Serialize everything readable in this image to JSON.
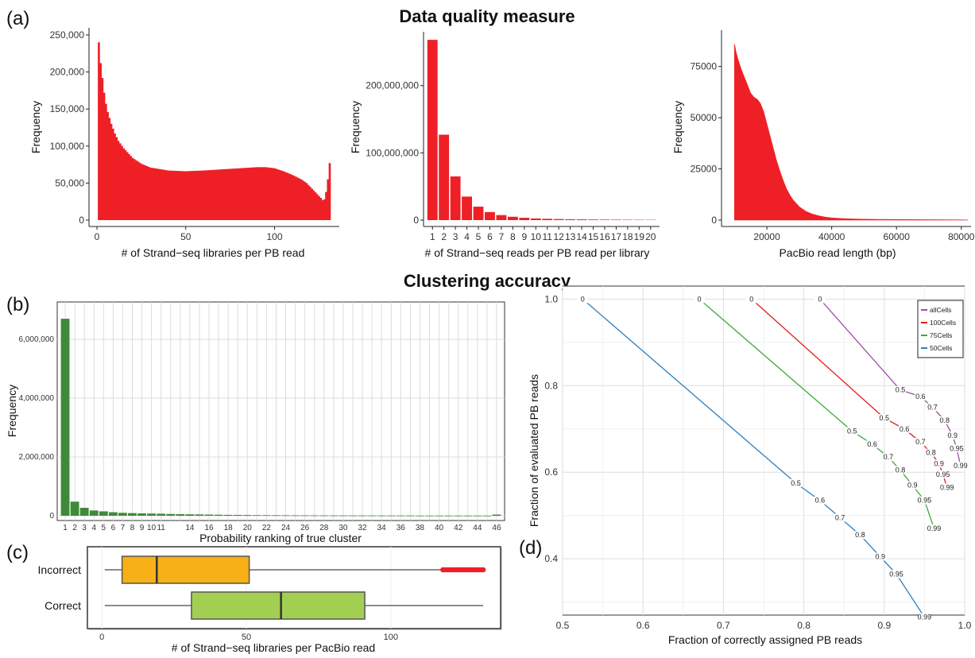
{
  "section_titles": {
    "top": "Data quality measure",
    "middle": "Clustering accuracy"
  },
  "panel_labels": {
    "a": "(a)",
    "b": "(b)",
    "c": "(c)",
    "d": "(d)"
  },
  "colors": {
    "hist_red": "#ee2026",
    "bar_green": "#3f8a3a",
    "box_orange": "#f7b015",
    "box_green": "#a2cf52",
    "outlier": "#ee2026",
    "allCells": "#9b4fa5",
    "100Cells": "#e31a1c",
    "75Cells": "#3caa3a",
    "50Cells": "#2b7fc1"
  },
  "chart_data": [
    {
      "id": "a1",
      "type": "bar",
      "xlabel": "# of Strand−seq libraries per PB read",
      "ylabel": "Frequency",
      "xlim": [
        0,
        132
      ],
      "ylim": [
        0,
        250000
      ],
      "xticks": [
        0,
        50,
        100
      ],
      "xtick_labels": [
        "0",
        "50",
        "100"
      ],
      "yticks": [
        0,
        50000,
        100000,
        150000,
        200000,
        250000
      ],
      "ytick_labels": [
        "0",
        "50,000",
        "100,000",
        "150,000",
        "200,000",
        "250,000"
      ],
      "x": [
        1,
        2,
        3,
        4,
        5,
        6,
        8,
        10,
        12,
        15,
        20,
        25,
        30,
        40,
        50,
        60,
        70,
        80,
        90,
        95,
        100,
        105,
        110,
        115,
        118,
        120,
        122,
        124,
        126,
        127,
        128,
        129,
        130,
        131
      ],
      "values": [
        240000,
        212000,
        192000,
        172000,
        157000,
        146000,
        130000,
        117000,
        107000,
        97000,
        84000,
        76000,
        71000,
        67000,
        66000,
        67000,
        68500,
        70000,
        71500,
        71500,
        70000,
        66000,
        61000,
        55000,
        50000,
        45000,
        40000,
        35000,
        30000,
        27000,
        28000,
        38000,
        55000,
        77000
      ]
    },
    {
      "id": "a2",
      "type": "bar",
      "xlabel": "# of Strand−seq reads per PB read per library",
      "ylabel": "Frequency",
      "ylim": [
        0,
        280000000
      ],
      "yticks": [
        0,
        100000000,
        200000000
      ],
      "ytick_labels": [
        "0",
        "100,000,000",
        "200,000,000"
      ],
      "categories": [
        "1",
        "2",
        "3",
        "4",
        "5",
        "6",
        "7",
        "8",
        "9",
        "10",
        "11",
        "12",
        "13",
        "14",
        "15",
        "16",
        "17",
        "18",
        "19",
        "20"
      ],
      "values": [
        268000000,
        127000000,
        65000000,
        35000000,
        20000000,
        12000000,
        7500000,
        5000000,
        3500000,
        2500000,
        2000000,
        1600000,
        1300000,
        1100000,
        900000,
        800000,
        700000,
        600000,
        500000,
        450000
      ]
    },
    {
      "id": "a3",
      "type": "area",
      "xlabel": "PacBio read length (bp)",
      "ylabel": "Frequency",
      "xlim": [
        6000,
        83000
      ],
      "ylim": [
        0,
        90000
      ],
      "xticks": [
        20000,
        40000,
        60000,
        80000
      ],
      "xtick_labels": [
        "20000",
        "40000",
        "60000",
        "80000"
      ],
      "yticks": [
        0,
        25000,
        50000,
        75000
      ],
      "ytick_labels": [
        "0",
        "25000",
        "50000",
        "75000"
      ],
      "x": [
        10000,
        10500,
        11000,
        12000,
        13000,
        14000,
        15000,
        16000,
        17000,
        18000,
        19000,
        20000,
        21000,
        22000,
        23000,
        24000,
        25000,
        26000,
        27000,
        28000,
        30000,
        32000,
        34000,
        36000,
        38000,
        40000,
        43000,
        46000,
        50000,
        55000,
        60000,
        70000,
        80000,
        82000
      ],
      "values": [
        86000,
        82000,
        79000,
        74000,
        70000,
        66000,
        62000,
        60000,
        59000,
        57000,
        53000,
        47000,
        41000,
        35000,
        29000,
        24000,
        19500,
        15500,
        12500,
        10000,
        6500,
        4300,
        3000,
        2100,
        1500,
        1100,
        800,
        600,
        450,
        350,
        300,
        200,
        150,
        100
      ]
    },
    {
      "id": "b",
      "type": "bar",
      "xlabel": "Probability ranking of true cluster",
      "ylabel": "Frequency",
      "ylim": [
        0,
        7000000
      ],
      "yticks": [
        0,
        2000000,
        4000000,
        6000000
      ],
      "ytick_labels": [
        "0",
        "2,000,000",
        "4,000,000",
        "6,000,000"
      ],
      "xtick_labels": [
        "1",
        "2",
        "3",
        "4",
        "5",
        "6",
        "7",
        "8",
        "9",
        "10",
        "11",
        "14",
        "16",
        "18",
        "20",
        "22",
        "24",
        "26",
        "28",
        "30",
        "32",
        "34",
        "36",
        "38",
        "40",
        "42",
        "44",
        "46"
      ],
      "categories": [
        "1",
        "2",
        "3",
        "4",
        "5",
        "6",
        "7",
        "8",
        "9",
        "10",
        "11",
        "12",
        "13",
        "14",
        "15",
        "16",
        "17",
        "18",
        "19",
        "20",
        "21",
        "22",
        "23",
        "24",
        "25",
        "26",
        "27",
        "28",
        "29",
        "30",
        "31",
        "32",
        "33",
        "34",
        "35",
        "36",
        "37",
        "38",
        "39",
        "40",
        "41",
        "42",
        "43",
        "44",
        "45",
        "46"
      ],
      "values": [
        6700000,
        480000,
        270000,
        180000,
        150000,
        120000,
        100000,
        90000,
        80000,
        75000,
        70000,
        60000,
        55000,
        50000,
        45000,
        40000,
        35000,
        30000,
        28000,
        25000,
        22000,
        20000,
        18000,
        16000,
        15000,
        14000,
        13000,
        12000,
        11000,
        10000,
        9500,
        9000,
        8500,
        8000,
        7500,
        7000,
        6500,
        6000,
        5500,
        5000,
        5000,
        5000,
        5000,
        5000,
        5000,
        40000
      ]
    },
    {
      "id": "c",
      "type": "box",
      "xlabel": "# of Strand−seq libraries per PacBio read",
      "xlim": [
        -5,
        138
      ],
      "xticks": [
        0,
        50,
        100
      ],
      "xtick_labels": [
        "0",
        "50",
        "100"
      ],
      "categories": [
        "Incorrect",
        "Correct"
      ],
      "boxes": [
        {
          "name": "Incorrect",
          "whisker_low": 1,
          "q1": 7,
          "median": 19,
          "q3": 51,
          "whisker_high": 118,
          "outliers_from": 118,
          "outliers_to": 132
        },
        {
          "name": "Correct",
          "whisker_low": 1,
          "q1": 31,
          "median": 62,
          "q3": 91,
          "whisker_high": 132
        }
      ]
    },
    {
      "id": "d",
      "type": "line",
      "xlabel": "Fraction of correctly assigned PB reads",
      "ylabel": "Fraction of evaluated PB reads",
      "xlim": [
        0.5,
        1.0
      ],
      "ylim": [
        0.27,
        1.03
      ],
      "xticks": [
        0.5,
        0.6,
        0.7,
        0.8,
        0.9,
        1.0
      ],
      "xtick_labels": [
        "0.5",
        "0.6",
        "0.7",
        "0.8",
        "0.9",
        "1.0"
      ],
      "yticks": [
        0.4,
        0.6,
        0.8,
        1.0
      ],
      "ytick_labels": [
        "0.4",
        "0.6",
        "0.8",
        "1.0"
      ],
      "legend_position": "top-right",
      "series": [
        {
          "name": "allCells",
          "color": "#9b4fa5",
          "points": [
            [
              0.82,
              1.0
            ],
            [
              0.92,
              0.79
            ],
            [
              0.945,
              0.775
            ],
            [
              0.96,
              0.75
            ],
            [
              0.975,
              0.72
            ],
            [
              0.985,
              0.685
            ],
            [
              0.99,
              0.655
            ],
            [
              0.995,
              0.615
            ]
          ],
          "labels": [
            "0",
            "0.5",
            "0.6",
            "0.7",
            "0.8",
            "0.9",
            "0.95",
            "0.99"
          ]
        },
        {
          "name": "100Cells",
          "color": "#e31a1c",
          "points": [
            [
              0.735,
              1.0
            ],
            [
              0.9,
              0.725
            ],
            [
              0.925,
              0.7
            ],
            [
              0.945,
              0.67
            ],
            [
              0.958,
              0.645
            ],
            [
              0.968,
              0.62
            ],
            [
              0.973,
              0.595
            ],
            [
              0.978,
              0.565
            ]
          ],
          "labels": [
            "0",
            "0.5",
            "0.6",
            "0.7",
            "0.8",
            "0.9",
            "0.95",
            "0.99"
          ]
        },
        {
          "name": "75Cells",
          "color": "#3caa3a",
          "points": [
            [
              0.67,
              1.0
            ],
            [
              0.86,
              0.695
            ],
            [
              0.885,
              0.665
            ],
            [
              0.905,
              0.635
            ],
            [
              0.92,
              0.605
            ],
            [
              0.935,
              0.57
            ],
            [
              0.95,
              0.535
            ],
            [
              0.962,
              0.47
            ]
          ],
          "labels": [
            "0",
            "0.5",
            "0.6",
            "0.7",
            "0.8",
            "0.9",
            "0.95",
            "0.99"
          ]
        },
        {
          "name": "50Cells",
          "color": "#2b7fc1",
          "points": [
            [
              0.525,
              1.0
            ],
            [
              0.79,
              0.575
            ],
            [
              0.82,
              0.535
            ],
            [
              0.845,
              0.495
            ],
            [
              0.87,
              0.455
            ],
            [
              0.895,
              0.405
            ],
            [
              0.915,
              0.365
            ],
            [
              0.95,
              0.265
            ]
          ],
          "labels": [
            "0",
            "0.5",
            "0.6",
            "0.7",
            "0.8",
            "0.9",
            "0.95",
            "0.99"
          ]
        }
      ]
    }
  ]
}
